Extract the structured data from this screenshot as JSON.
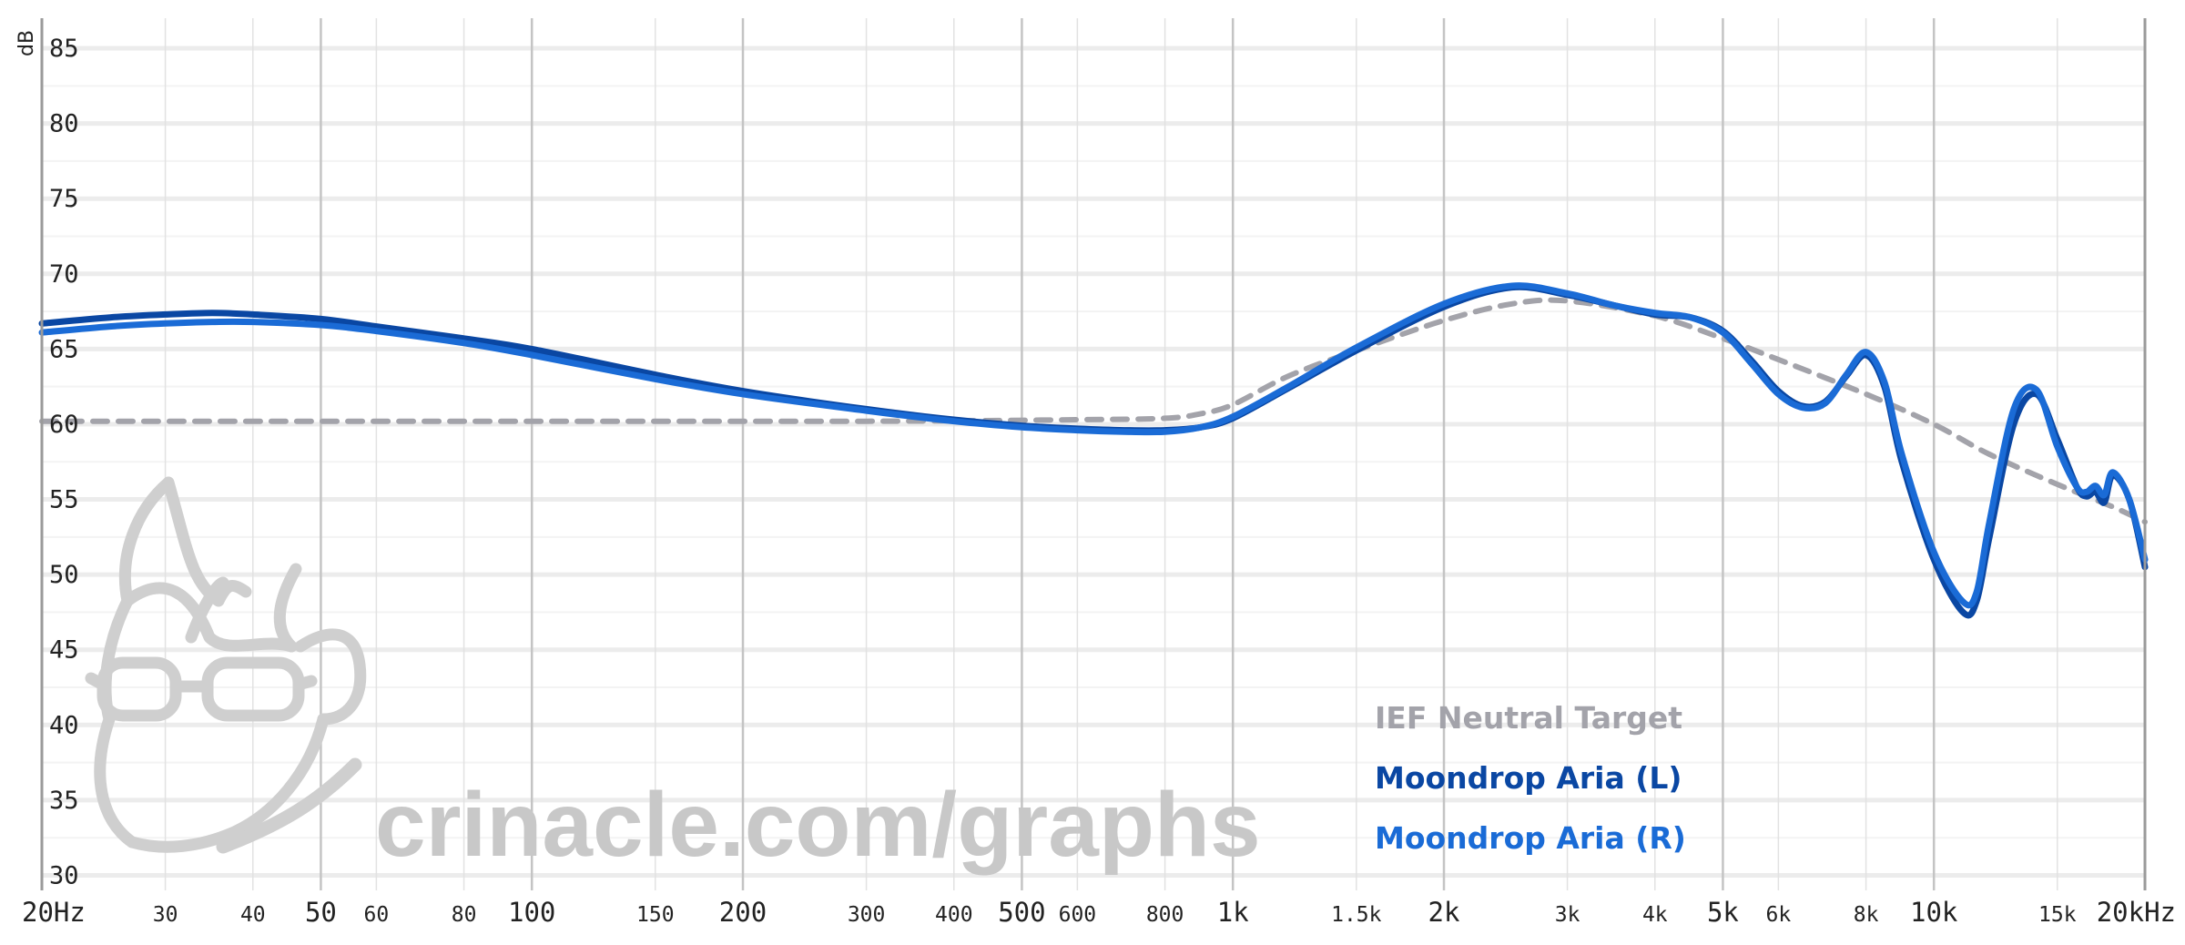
{
  "chart_data": {
    "type": "line",
    "title": "",
    "xlabel": "",
    "ylabel": "dB",
    "x_scale": "log",
    "xlim": [
      20,
      20000
    ],
    "ylim": [
      29,
      87
    ],
    "grid": true,
    "legend_position": "bottom-right",
    "y_ticks": [
      30,
      35,
      40,
      45,
      50,
      55,
      60,
      65,
      70,
      75,
      80,
      85
    ],
    "x_ticks": [
      {
        "value": 20,
        "label": "20Hz",
        "major": true
      },
      {
        "value": 30,
        "label": "30",
        "major": false
      },
      {
        "value": 40,
        "label": "40",
        "major": false
      },
      {
        "value": 50,
        "label": "50",
        "major": true
      },
      {
        "value": 60,
        "label": "60",
        "major": false
      },
      {
        "value": 80,
        "label": "80",
        "major": false
      },
      {
        "value": 100,
        "label": "100",
        "major": true
      },
      {
        "value": 150,
        "label": "150",
        "major": false
      },
      {
        "value": 200,
        "label": "200",
        "major": true
      },
      {
        "value": 300,
        "label": "300",
        "major": false
      },
      {
        "value": 400,
        "label": "400",
        "major": false
      },
      {
        "value": 500,
        "label": "500",
        "major": true
      },
      {
        "value": 600,
        "label": "600",
        "major": false
      },
      {
        "value": 800,
        "label": "800",
        "major": false
      },
      {
        "value": 1000,
        "label": "1k",
        "major": true
      },
      {
        "value": 1500,
        "label": "1.5k",
        "major": false
      },
      {
        "value": 2000,
        "label": "2k",
        "major": true
      },
      {
        "value": 3000,
        "label": "3k",
        "major": false
      },
      {
        "value": 4000,
        "label": "4k",
        "major": false
      },
      {
        "value": 5000,
        "label": "5k",
        "major": true
      },
      {
        "value": 6000,
        "label": "6k",
        "major": false
      },
      {
        "value": 8000,
        "label": "8k",
        "major": false
      },
      {
        "value": 10000,
        "label": "10k",
        "major": true
      },
      {
        "value": 15000,
        "label": "15k",
        "major": false
      },
      {
        "value": 20000,
        "label": "20kHz",
        "major": true
      }
    ],
    "series": [
      {
        "name": "IEF Neutral Target",
        "color": "#a3a3aa",
        "dash": true,
        "x": [
          20,
          100,
          300,
          600,
          800,
          900,
          1000,
          1200,
          1500,
          2000,
          2500,
          3000,
          4000,
          5000,
          6000,
          8000,
          10000,
          12000,
          15000,
          18000,
          20000
        ],
        "y": [
          60.2,
          60.2,
          60.2,
          60.3,
          60.4,
          60.7,
          61.3,
          63.2,
          64.9,
          66.9,
          68.0,
          68.2,
          67.2,
          65.7,
          64.3,
          62.0,
          60.0,
          58.0,
          56.0,
          54.5,
          53.5
        ]
      },
      {
        "name": "Moondrop Aria (L)",
        "color": "#0a47a3",
        "dash": false,
        "x": [
          20,
          25,
          30,
          35,
          40,
          50,
          60,
          80,
          100,
          150,
          200,
          300,
          400,
          500,
          600,
          700,
          800,
          900,
          1000,
          1200,
          1500,
          2000,
          2500,
          3000,
          3500,
          4000,
          4500,
          5000,
          5500,
          6000,
          6500,
          7000,
          7500,
          8000,
          8500,
          9000,
          10000,
          11000,
          11500,
          12000,
          13000,
          14000,
          15000,
          16000,
          16500,
          17000,
          17500,
          18000,
          19000,
          20000
        ],
        "y": [
          66.7,
          67.1,
          67.3,
          67.4,
          67.3,
          67.0,
          66.5,
          65.7,
          65.0,
          63.3,
          62.2,
          61.0,
          60.3,
          59.9,
          59.7,
          59.6,
          59.6,
          59.8,
          60.4,
          62.4,
          64.9,
          67.8,
          69.1,
          68.6,
          67.9,
          67.3,
          67.1,
          66.2,
          64.2,
          62.2,
          61.2,
          61.5,
          63.2,
          64.6,
          62.5,
          57.5,
          51.0,
          47.5,
          48.2,
          52.5,
          60.0,
          62.0,
          59.0,
          55.8,
          55.2,
          55.5,
          54.8,
          56.6,
          55.0,
          50.5
        ]
      },
      {
        "name": "Moondrop Aria (R)",
        "color": "#1a6bd6",
        "dash": false,
        "x": [
          20,
          25,
          30,
          35,
          40,
          50,
          60,
          80,
          100,
          150,
          200,
          300,
          400,
          500,
          600,
          700,
          800,
          900,
          1000,
          1200,
          1500,
          2000,
          2500,
          3000,
          3500,
          4000,
          4500,
          5000,
          5500,
          6000,
          6500,
          7000,
          7500,
          8000,
          8500,
          9000,
          10000,
          11000,
          11500,
          12000,
          13000,
          14000,
          15000,
          16000,
          16500,
          17000,
          17500,
          18000,
          19000,
          20000
        ],
        "y": [
          66.1,
          66.5,
          66.7,
          66.8,
          66.8,
          66.6,
          66.2,
          65.4,
          64.6,
          63.0,
          62.0,
          60.9,
          60.2,
          59.8,
          59.6,
          59.5,
          59.5,
          59.8,
          60.5,
          62.5,
          65.1,
          68.0,
          69.2,
          68.7,
          67.9,
          67.4,
          67.1,
          66.1,
          64.0,
          62.0,
          61.1,
          61.4,
          63.3,
          64.8,
          62.8,
          58.0,
          51.5,
          48.2,
          48.8,
          53.5,
          61.0,
          62.3,
          58.5,
          55.8,
          55.5,
          55.9,
          55.3,
          56.8,
          55.0,
          51.0
        ]
      }
    ]
  },
  "watermark": {
    "text": "crinacle.com/graphs"
  }
}
